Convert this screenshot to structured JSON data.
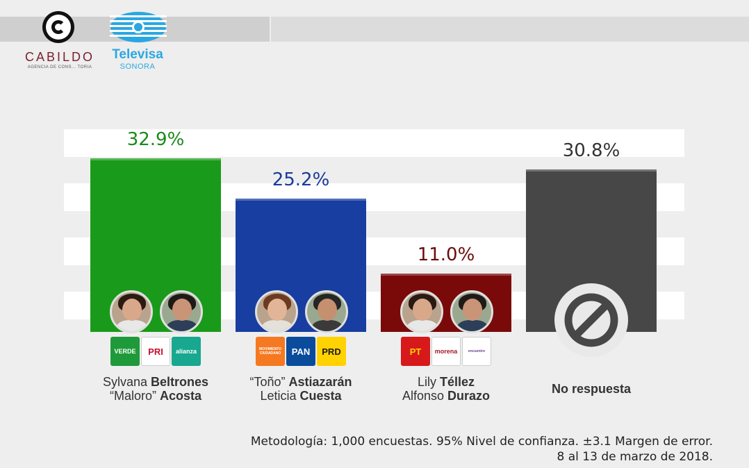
{
  "logos": {
    "cabildo_name": "CABILDO",
    "cabildo_sub": "AGENCIA DE CONS... TORIA",
    "televisa_name": "Televisa",
    "televisa_sub": "SONORA"
  },
  "chart_data": {
    "type": "bar",
    "title": "",
    "ylim": [
      0,
      40
    ],
    "categories": [
      "Sylvana Beltrones / “Maloro” Acosta",
      "“Toño” Astiazarán / Leticia Cuesta",
      "Lily Téllez / Alfonso Durazo",
      "No respuesta"
    ],
    "values": [
      32.9,
      25.2,
      11.0,
      30.8
    ],
    "value_labels": [
      "32.9%",
      "25.2%",
      "11.0%",
      "30.8%"
    ],
    "colors": [
      "#1a9a1a",
      "#173ea0",
      "#7a0a0a",
      "#474747"
    ],
    "label_colors": [
      "#1a8a1a",
      "#1a3a9a",
      "#6a0c0c",
      "#333333"
    ],
    "candidates": [
      {
        "line1_first": "Sylvana ",
        "line1_last": "Beltrones",
        "line2_first": "“Maloro” ",
        "line2_last": "Acosta",
        "parties": [
          {
            "label": "VERDE",
            "bg": "#1f9a3a",
            "fg": "#ffffff"
          },
          {
            "label": "PRI",
            "bg": "#ffffff",
            "fg": "#c8102e"
          },
          {
            "label": "alianza",
            "bg": "#17a88f",
            "fg": "#ffffff"
          }
        ]
      },
      {
        "line1_first": "“Toño” ",
        "line1_last": "Astiazarán",
        "line2_first": "Leticia ",
        "line2_last": "Cuesta",
        "parties": [
          {
            "label": "MOVIMIENTO CIUDADANO",
            "bg": "#f47920",
            "fg": "#ffffff"
          },
          {
            "label": "PAN",
            "bg": "#0a4b9c",
            "fg": "#ffffff"
          },
          {
            "label": "PRD",
            "bg": "#ffd200",
            "fg": "#1a1a1a"
          }
        ]
      },
      {
        "line1_first": "Lily ",
        "line1_last": "Téllez",
        "line2_first": "Alfonso ",
        "line2_last": "Durazo",
        "parties": [
          {
            "label": "PT",
            "bg": "#d7191c",
            "fg": "#ffd200"
          },
          {
            "label": "morena",
            "bg": "#ffffff",
            "fg": "#a4162a"
          },
          {
            "label": "encuentro",
            "bg": "#ffffff",
            "fg": "#6a3b8e"
          }
        ]
      },
      {
        "line1_first": "",
        "line1_last": "No respuesta",
        "line2_first": "",
        "line2_last": "",
        "parties": []
      }
    ]
  },
  "footnote": {
    "line1": "Metodología: 1,000 encuestas. 95% Nivel de confianza. ±3.1 Margen de error.",
    "line2": "8 al 13 de marzo de 2018."
  }
}
